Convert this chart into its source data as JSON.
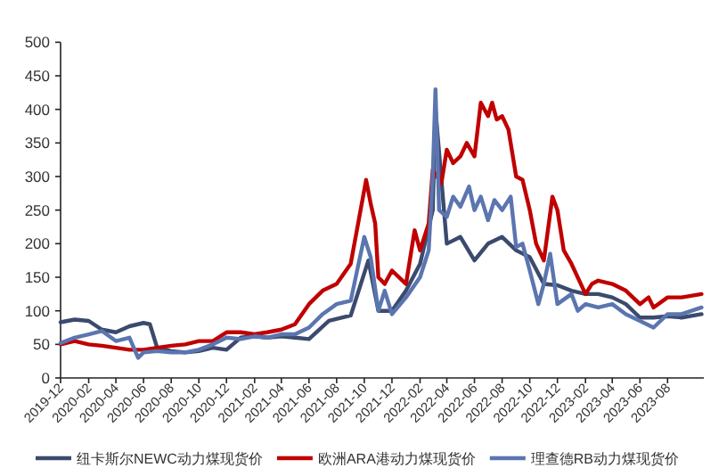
{
  "chart_data": {
    "type": "line",
    "xlim": [
      "2019-12-01",
      "2023-10-20"
    ],
    "xticks": [
      "2019-12",
      "2020-02",
      "2020-04",
      "2020-06",
      "2020-08",
      "2020-10",
      "2020-12",
      "2021-02",
      "2021-04",
      "2021-06",
      "2021-08",
      "2021-10",
      "2021-12",
      "2022-02",
      "2022-04",
      "2022-06",
      "2022-08",
      "2022-10",
      "2022-12",
      "2023-02",
      "2023-04",
      "2023-06",
      "2023-08"
    ],
    "ylim": [
      0,
      500
    ],
    "yticks": [
      0,
      50,
      100,
      150,
      200,
      250,
      300,
      350,
      400,
      450,
      500
    ],
    "grid": false,
    "legend": "bottom",
    "marker": "none",
    "line_style": "solid",
    "series": [
      {
        "name": "纽卡斯尔NEWC动力煤现货价",
        "color": "#3b4a6e",
        "x": [
          "2019-12-01",
          "2020-01-01",
          "2020-02-01",
          "2020-03-01",
          "2020-04-01",
          "2020-05-01",
          "2020-06-01",
          "2020-06-15",
          "2020-07-01",
          "2020-08-01",
          "2020-09-01",
          "2020-10-01",
          "2020-11-01",
          "2020-12-01",
          "2021-01-01",
          "2021-02-01",
          "2021-03-01",
          "2021-04-01",
          "2021-05-01",
          "2021-06-01",
          "2021-07-15",
          "2021-09-01",
          "2021-10-10",
          "2021-11-01",
          "2021-12-01",
          "2022-01-01",
          "2022-02-01",
          "2022-03-01",
          "2022-03-07",
          "2022-04-01",
          "2022-05-01",
          "2022-06-01",
          "2022-07-01",
          "2022-08-01",
          "2022-09-01",
          "2022-10-01",
          "2022-11-01",
          "2022-12-01",
          "2023-01-01",
          "2023-02-01",
          "2023-03-01",
          "2023-04-01",
          "2023-05-01",
          "2023-06-01",
          "2023-07-01",
          "2023-08-01",
          "2023-09-01",
          "2023-10-15"
        ],
        "values": [
          83,
          87,
          85,
          72,
          68,
          77,
          82,
          80,
          45,
          40,
          38,
          40,
          45,
          42,
          60,
          62,
          60,
          62,
          60,
          58,
          85,
          93,
          175,
          100,
          100,
          130,
          170,
          250,
          400,
          200,
          210,
          175,
          200,
          210,
          190,
          180,
          140,
          138,
          130,
          125,
          125,
          120,
          110,
          90,
          90,
          92,
          90,
          95
        ]
      },
      {
        "name": "欧洲ARA港动力煤现货价",
        "color": "#c00000",
        "x": [
          "2019-12-01",
          "2020-01-01",
          "2020-02-01",
          "2020-03-01",
          "2020-04-01",
          "2020-05-01",
          "2020-06-01",
          "2020-07-01",
          "2020-08-01",
          "2020-09-01",
          "2020-10-01",
          "2020-11-01",
          "2020-12-01",
          "2021-01-01",
          "2021-02-01",
          "2021-03-01",
          "2021-04-01",
          "2021-05-01",
          "2021-06-01",
          "2021-07-01",
          "2021-08-01",
          "2021-09-01",
          "2021-10-05",
          "2021-10-15",
          "2021-10-25",
          "2021-11-01",
          "2021-11-15",
          "2021-12-01",
          "2022-01-01",
          "2022-01-20",
          "2022-02-01",
          "2022-02-20",
          "2022-03-01",
          "2022-03-20",
          "2022-04-01",
          "2022-04-15",
          "2022-05-01",
          "2022-05-15",
          "2022-06-01",
          "2022-06-15",
          "2022-07-01",
          "2022-07-10",
          "2022-07-20",
          "2022-08-01",
          "2022-08-15",
          "2022-09-01",
          "2022-09-15",
          "2022-10-01",
          "2022-10-15",
          "2022-11-01",
          "2022-11-20",
          "2022-12-01",
          "2022-12-15",
          "2023-01-01",
          "2023-02-01",
          "2023-02-15",
          "2023-03-01",
          "2023-04-01",
          "2023-05-01",
          "2023-06-01",
          "2023-06-20",
          "2023-07-01",
          "2023-08-01",
          "2023-09-01",
          "2023-10-15"
        ],
        "values": [
          50,
          55,
          50,
          48,
          45,
          42,
          42,
          45,
          48,
          50,
          55,
          55,
          68,
          68,
          65,
          68,
          72,
          80,
          110,
          130,
          140,
          170,
          295,
          260,
          230,
          150,
          140,
          160,
          140,
          220,
          190,
          230,
          310,
          290,
          340,
          320,
          330,
          350,
          330,
          410,
          390,
          410,
          385,
          390,
          370,
          300,
          295,
          250,
          200,
          175,
          270,
          250,
          190,
          170,
          125,
          140,
          145,
          140,
          130,
          110,
          120,
          105,
          120,
          120,
          125
        ]
      },
      {
        "name": "理查德RB动力煤现货价",
        "color": "#5b75b0",
        "x": [
          "2019-12-01",
          "2020-01-01",
          "2020-02-01",
          "2020-03-01",
          "2020-04-01",
          "2020-05-01",
          "2020-05-20",
          "2020-06-01",
          "2020-07-01",
          "2020-08-01",
          "2020-09-01",
          "2020-10-01",
          "2020-11-01",
          "2020-12-01",
          "2021-01-01",
          "2021-02-01",
          "2021-03-01",
          "2021-04-01",
          "2021-05-01",
          "2021-06-01",
          "2021-07-01",
          "2021-08-01",
          "2021-09-01",
          "2021-10-01",
          "2021-10-15",
          "2021-11-01",
          "2021-11-15",
          "2021-12-01",
          "2022-01-01",
          "2022-02-01",
          "2022-02-20",
          "2022-03-01",
          "2022-03-07",
          "2022-03-15",
          "2022-04-01",
          "2022-04-15",
          "2022-05-01",
          "2022-05-20",
          "2022-06-01",
          "2022-06-15",
          "2022-07-01",
          "2022-07-15",
          "2022-08-01",
          "2022-08-20",
          "2022-09-01",
          "2022-09-15",
          "2022-10-01",
          "2022-10-20",
          "2022-11-01",
          "2022-11-15",
          "2022-12-01",
          "2023-01-01",
          "2023-01-15",
          "2023-02-01",
          "2023-03-01",
          "2023-04-01",
          "2023-05-01",
          "2023-06-01",
          "2023-07-01",
          "2023-08-01",
          "2023-09-01",
          "2023-10-15"
        ],
        "values": [
          52,
          60,
          65,
          70,
          55,
          60,
          30,
          38,
          40,
          38,
          38,
          42,
          50,
          60,
          58,
          62,
          60,
          65,
          65,
          75,
          95,
          110,
          115,
          210,
          180,
          100,
          130,
          95,
          120,
          150,
          190,
          300,
          430,
          250,
          240,
          270,
          255,
          285,
          250,
          270,
          235,
          265,
          250,
          270,
          195,
          200,
          160,
          110,
          140,
          185,
          110,
          125,
          100,
          110,
          105,
          110,
          95,
          85,
          75,
          95,
          95,
          105
        ]
      }
    ]
  }
}
